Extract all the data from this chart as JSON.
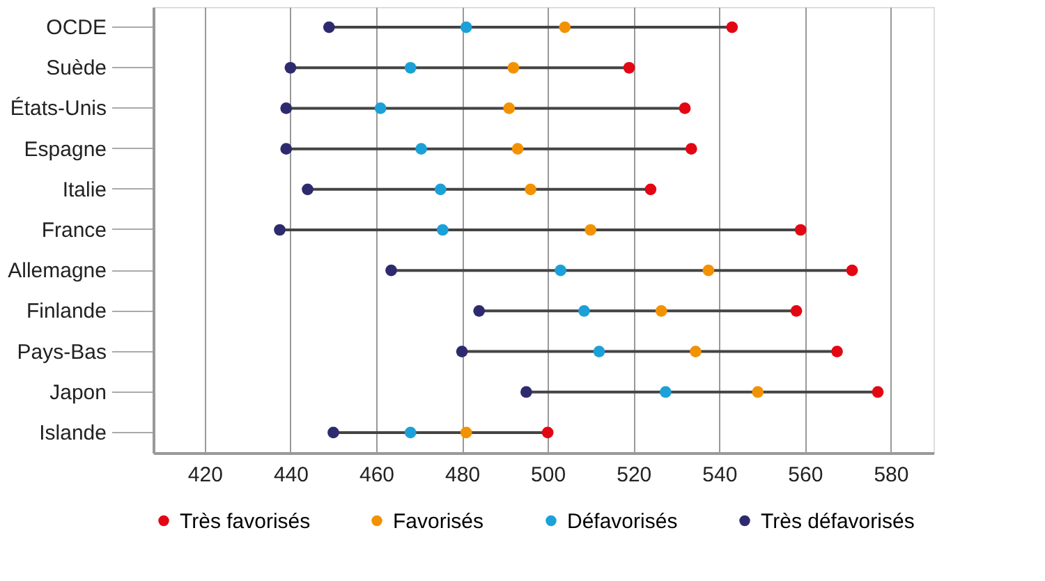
{
  "chart_data": {
    "type": "scatter",
    "orientation": "horizontal",
    "categories": [
      "OCDE",
      "Suède",
      "États-Unis",
      "Espagne",
      "Italie",
      "France",
      "Allemagne",
      "Finlande",
      "Pays-Bas",
      "Japon",
      "Islande"
    ],
    "series": [
      {
        "name": "Très favorisés",
        "color": "#e30613",
        "values": [
          543,
          519,
          532,
          533.5,
          524,
          559,
          571,
          558,
          567.5,
          577,
          500
        ]
      },
      {
        "name": "Favorisés",
        "color": "#f39200",
        "values": [
          504,
          492,
          491,
          493,
          496,
          510,
          537.5,
          526.5,
          534.5,
          549,
          481
        ]
      },
      {
        "name": "Défavorisés",
        "color": "#1ba1d8",
        "values": [
          481,
          468,
          461,
          470.5,
          475,
          475.5,
          503,
          508.5,
          512,
          527.5,
          468
        ]
      },
      {
        "name": "Très défavorisés",
        "color": "#2e2a6e",
        "values": [
          449,
          440,
          439,
          439,
          444,
          437.5,
          463.5,
          484,
          480,
          495,
          450
        ]
      }
    ],
    "xlim": [
      408,
      590
    ],
    "xticks": [
      420,
      440,
      460,
      480,
      500,
      520,
      540,
      560,
      580
    ],
    "grid": "x",
    "legend": "bottom",
    "marker": "circle"
  }
}
